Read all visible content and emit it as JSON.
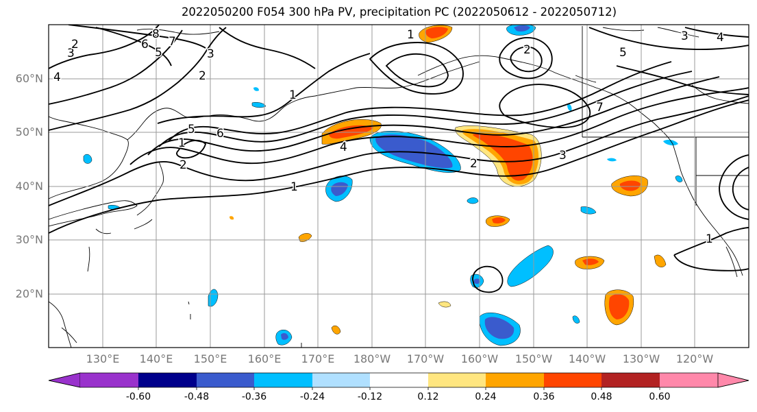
{
  "title": "2022050200 F054 300 hPa PV, precipitation PC (2022050612 - 2022050712)",
  "lat_labels": [
    "60°N",
    "50°N",
    "40°N",
    "30°N",
    "20°N"
  ],
  "lon_labels": [
    "130°E",
    "140°E",
    "150°E",
    "160°E",
    "170°E",
    "180°W",
    "170°W",
    "160°W",
    "150°W",
    "140°W",
    "130°W",
    "120°W"
  ],
  "map": {
    "projection": "PlateCarree",
    "lat_range": [
      10,
      70
    ],
    "lon_range": [
      120,
      250
    ],
    "grid": true
  },
  "contour_labels": [
    "8",
    "7",
    "6",
    "5",
    "3",
    "2",
    "2",
    "3",
    "4",
    "1",
    "2",
    "5",
    "6",
    "1",
    "4",
    "2",
    "3",
    "1",
    "1",
    "7",
    "5",
    "3",
    "4",
    "2",
    "1"
  ],
  "colorbar": {
    "ticks": [
      "-0.60",
      "-0.48",
      "-0.36",
      "-0.24",
      "-0.12",
      "0.12",
      "0.24",
      "0.36",
      "0.48",
      "0.60"
    ],
    "colors": [
      "#9932CC",
      "#00008B",
      "#3A5BCD",
      "#00BFFF",
      "#B0E0FF",
      "#FFFFFF",
      "#FFE680",
      "#FFA500",
      "#FF4500",
      "#B22222",
      "#FF88AA"
    ]
  }
}
